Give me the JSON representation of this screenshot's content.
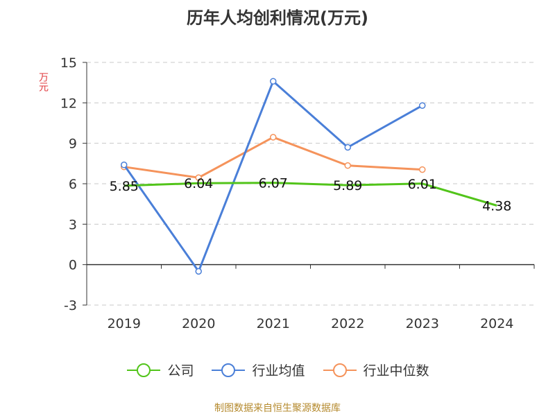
{
  "chart_data": {
    "type": "line",
    "title": "历年人均创利情况(万元)",
    "xlabel": "",
    "ylabel": "万元",
    "categories": [
      "2019",
      "2020",
      "2021",
      "2022",
      "2023",
      "2024"
    ],
    "ylim": [
      -3,
      15
    ],
    "yticks": [
      "15",
      "12",
      "9",
      "6",
      "3",
      "0",
      "-3"
    ],
    "grid": true,
    "legend_position": "bottom",
    "series": [
      {
        "name": "公司",
        "color": "#52c41a",
        "values": [
          5.85,
          6.04,
          6.07,
          5.89,
          6.01,
          4.38
        ],
        "labels": [
          "5.85",
          "6.04",
          "6.07",
          "5.89",
          "6.01",
          "4.38"
        ]
      },
      {
        "name": "行业均值",
        "color": "#4a7fd8",
        "values": [
          7.4,
          -0.5,
          13.6,
          8.7,
          11.8,
          null
        ]
      },
      {
        "name": "行业中位数",
        "color": "#f5935b",
        "values": [
          7.25,
          6.45,
          9.45,
          7.35,
          7.05,
          null
        ]
      }
    ]
  },
  "source": "制图数据来自恒生聚源数据库"
}
